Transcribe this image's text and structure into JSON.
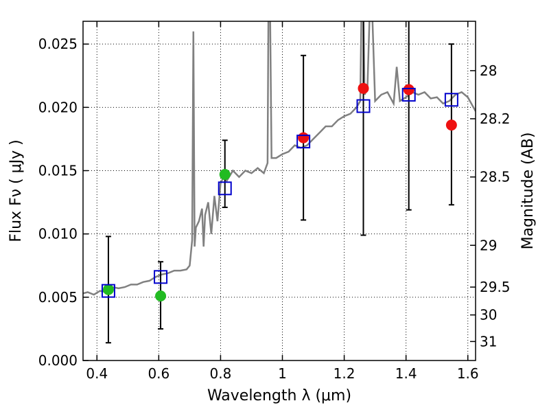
{
  "chart_data": {
    "type": "scatter",
    "xlabel": "Wavelength  λ (μm)",
    "ylabel": "Flux  Fν  ( μJy )",
    "y2label": "Magnitude (AB)",
    "xlim": [
      0.355,
      1.625
    ],
    "ylim": [
      0.0,
      0.0268
    ],
    "grid": true,
    "x_ticks": [
      0.4,
      0.6,
      0.8,
      1.0,
      1.2,
      1.4,
      1.6
    ],
    "x_tick_labels": [
      "0.4",
      "0.6",
      "0.8",
      "1",
      "1.2",
      "1.4",
      "1.6"
    ],
    "y_ticks": [
      0.0,
      0.005,
      0.01,
      0.015,
      0.02,
      0.025
    ],
    "y_tick_labels": [
      "0.000",
      "0.005",
      "0.010",
      "0.015",
      "0.020",
      "0.025"
    ],
    "y2_ticks": [
      {
        "label": "28",
        "flux": 0.0229
      },
      {
        "label": "28.2",
        "flux": 0.0191
      },
      {
        "label": "28.5",
        "flux": 0.0145
      },
      {
        "label": "29",
        "flux": 0.0091
      },
      {
        "label": "29.5",
        "flux": 0.0058
      },
      {
        "label": "30",
        "flux": 0.0036
      },
      {
        "label": "31",
        "flux": 0.0015
      }
    ],
    "spectrum": {
      "color": "#808080",
      "points": [
        [
          0.355,
          0.0053
        ],
        [
          0.37,
          0.0054
        ],
        [
          0.39,
          0.0052
        ],
        [
          0.41,
          0.0055
        ],
        [
          0.43,
          0.0054
        ],
        [
          0.45,
          0.0058
        ],
        [
          0.47,
          0.0057
        ],
        [
          0.49,
          0.0058
        ],
        [
          0.51,
          0.006
        ],
        [
          0.53,
          0.006
        ],
        [
          0.55,
          0.0062
        ],
        [
          0.57,
          0.0063
        ],
        [
          0.59,
          0.0066
        ],
        [
          0.61,
          0.0068
        ],
        [
          0.63,
          0.0069
        ],
        [
          0.65,
          0.0071
        ],
        [
          0.67,
          0.0071
        ],
        [
          0.69,
          0.0072
        ],
        [
          0.7,
          0.0075
        ],
        [
          0.708,
          0.0095
        ],
        [
          0.712,
          0.026
        ],
        [
          0.716,
          0.009
        ],
        [
          0.72,
          0.0105
        ],
        [
          0.73,
          0.011
        ],
        [
          0.74,
          0.012
        ],
        [
          0.745,
          0.009
        ],
        [
          0.75,
          0.0115
        ],
        [
          0.76,
          0.0125
        ],
        [
          0.77,
          0.01
        ],
        [
          0.78,
          0.013
        ],
        [
          0.79,
          0.011
        ],
        [
          0.8,
          0.014
        ],
        [
          0.81,
          0.0145
        ],
        [
          0.82,
          0.0142
        ],
        [
          0.84,
          0.015
        ],
        [
          0.86,
          0.0145
        ],
        [
          0.88,
          0.015
        ],
        [
          0.9,
          0.0148
        ],
        [
          0.92,
          0.0152
        ],
        [
          0.94,
          0.0148
        ],
        [
          0.952,
          0.0156
        ],
        [
          0.955,
          0.028
        ],
        [
          0.96,
          0.028
        ],
        [
          0.965,
          0.016
        ],
        [
          0.98,
          0.016
        ],
        [
          1.0,
          0.0163
        ],
        [
          1.02,
          0.0165
        ],
        [
          1.04,
          0.017
        ],
        [
          1.06,
          0.0168
        ],
        [
          1.08,
          0.017
        ],
        [
          1.1,
          0.0175
        ],
        [
          1.12,
          0.018
        ],
        [
          1.14,
          0.0185
        ],
        [
          1.16,
          0.0185
        ],
        [
          1.18,
          0.019
        ],
        [
          1.2,
          0.0193
        ],
        [
          1.22,
          0.0195
        ],
        [
          1.24,
          0.02
        ],
        [
          1.252,
          0.0205
        ],
        [
          1.256,
          0.028
        ],
        [
          1.262,
          0.028
        ],
        [
          1.266,
          0.021
        ],
        [
          1.275,
          0.0215
        ],
        [
          1.283,
          0.028
        ],
        [
          1.29,
          0.028
        ],
        [
          1.3,
          0.0205
        ],
        [
          1.32,
          0.021
        ],
        [
          1.34,
          0.0212
        ],
        [
          1.36,
          0.0203
        ],
        [
          1.37,
          0.0232
        ],
        [
          1.38,
          0.0205
        ],
        [
          1.4,
          0.0208
        ],
        [
          1.42,
          0.0212
        ],
        [
          1.44,
          0.021
        ],
        [
          1.46,
          0.0212
        ],
        [
          1.48,
          0.0207
        ],
        [
          1.5,
          0.0208
        ],
        [
          1.52,
          0.0203
        ],
        [
          1.54,
          0.0205
        ],
        [
          1.56,
          0.021
        ],
        [
          1.58,
          0.0212
        ],
        [
          1.6,
          0.0208
        ],
        [
          1.625,
          0.0197
        ]
      ]
    },
    "series": [
      {
        "marker": "square",
        "color": "#0000cc",
        "points": [
          {
            "x": 0.437,
            "y": 0.0055
          },
          {
            "x": 0.606,
            "y": 0.0066
          },
          {
            "x": 0.814,
            "y": 0.0136
          },
          {
            "x": 1.068,
            "y": 0.0173
          },
          {
            "x": 1.262,
            "y": 0.0201
          },
          {
            "x": 1.409,
            "y": 0.021
          },
          {
            "x": 1.547,
            "y": 0.0206
          }
        ]
      },
      {
        "marker": "circle",
        "color": "#22bb22",
        "points": [
          {
            "x": 0.437,
            "y": 0.0056
          },
          {
            "x": 0.606,
            "y": 0.0051
          },
          {
            "x": 0.814,
            "y": 0.0147
          }
        ]
      },
      {
        "marker": "circle",
        "color": "#ee1111",
        "points": [
          {
            "x": 1.068,
            "y": 0.0176
          },
          {
            "x": 1.262,
            "y": 0.0215
          },
          {
            "x": 1.409,
            "y": 0.0214
          },
          {
            "x": 1.547,
            "y": 0.0186
          }
        ]
      }
    ],
    "error_bars": [
      {
        "x": 0.437,
        "low": 0.0014,
        "high": 0.0098
      },
      {
        "x": 0.606,
        "low": 0.0025,
        "high": 0.0078
      },
      {
        "x": 0.814,
        "low": 0.0121,
        "high": 0.0174
      },
      {
        "x": 1.068,
        "low": 0.0111,
        "high": 0.0241
      },
      {
        "x": 1.262,
        "low": 0.0099,
        "high": 0.03
      },
      {
        "x": 1.409,
        "low": 0.0119,
        "high": 0.03
      },
      {
        "x": 1.547,
        "low": 0.0123,
        "high": 0.025
      }
    ]
  }
}
